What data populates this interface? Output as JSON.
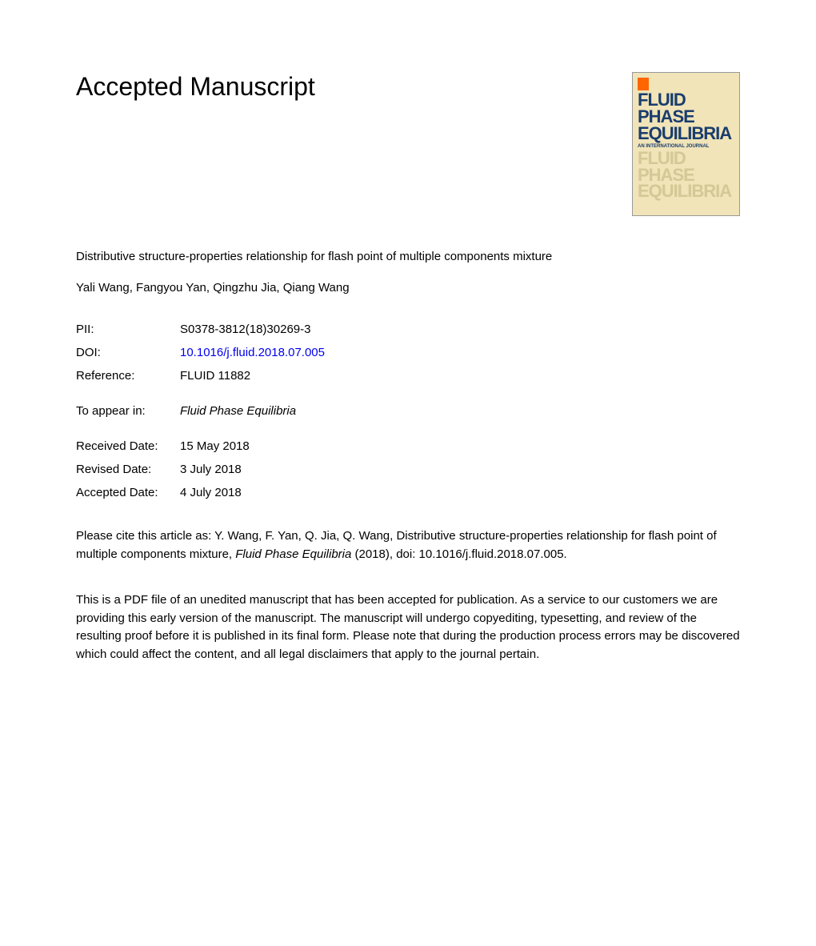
{
  "heading": "Accepted Manuscript",
  "journal_cover": {
    "title_line1": "FLUID PHASE",
    "title_line2": "EQUILIBRIA",
    "subtitle": "AN INTERNATIONAL JOURNAL",
    "shadow_line1": "FLUID PHASE",
    "shadow_line2": "EQUILIBRIA"
  },
  "article": {
    "title": "Distributive structure-properties relationship for flash point of multiple components mixture",
    "authors": "Yali Wang, Fangyou Yan, Qingzhu Jia, Qiang Wang"
  },
  "meta": {
    "pii_label": "PII:",
    "pii_value": "S0378-3812(18)30269-3",
    "doi_label": "DOI:",
    "doi_value": "10.1016/j.fluid.2018.07.005",
    "reference_label": "Reference:",
    "reference_value": "FLUID 11882",
    "appear_label": "To appear in:",
    "appear_value": "Fluid Phase Equilibria",
    "received_label": "Received Date:",
    "received_value": "15 May 2018",
    "revised_label": "Revised Date:",
    "revised_value": "3 July 2018",
    "accepted_label": "Accepted Date:",
    "accepted_value": "4 July 2018"
  },
  "citation": {
    "prefix": "Please cite this article as: Y. Wang, F. Yan, Q. Jia, Q. Wang, Distributive structure-properties relationship for flash point of multiple components mixture, ",
    "journal": "Fluid Phase Equilibria",
    "suffix": " (2018), doi: 10.1016/j.fluid.2018.07.005."
  },
  "disclaimer": "This is a PDF file of an unedited manuscript that has been accepted for publication. As a service to our customers we are providing this early version of the manuscript. The manuscript will undergo copyediting, typesetting, and review of the resulting proof before it is published in its final form. Please note that during the production process errors may be discovered which could affect the content, and all legal disclaimers that apply to the journal pertain."
}
